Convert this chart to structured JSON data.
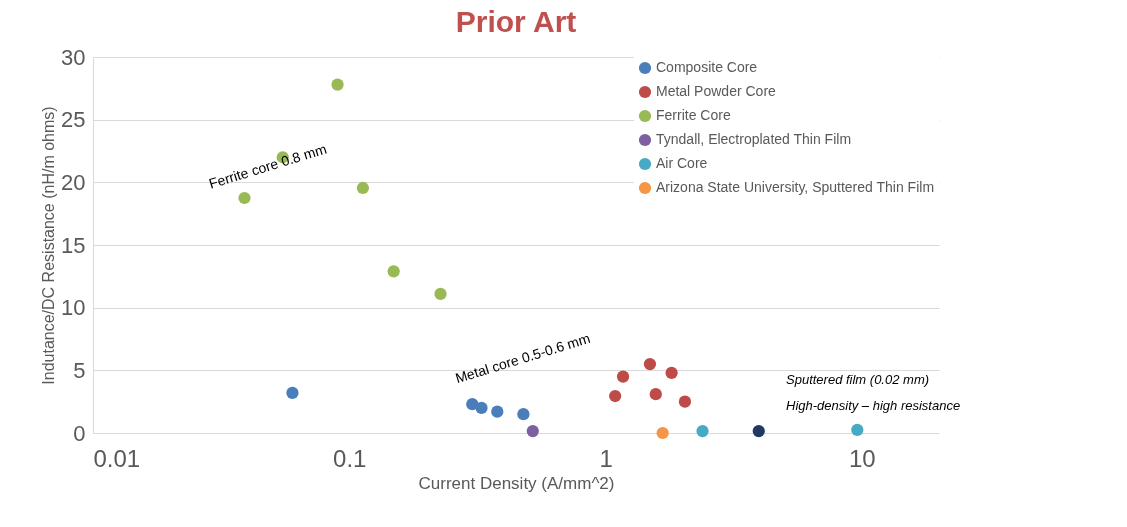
{
  "chart_data": {
    "type": "scatter",
    "title": "Prior Art",
    "xlabel": "Current Density (A/mm^2)",
    "ylabel": "Indutance/DC Resistance (nH/m ohms)",
    "log": "x",
    "xlim": [
      0.01,
      20
    ],
    "xticks": [
      0.01,
      0.1,
      1,
      10
    ],
    "ylim": [
      0,
      30
    ],
    "yticks": [
      0,
      5,
      10,
      15,
      20,
      25,
      30
    ],
    "grid": "y",
    "legend": "top right",
    "marker": "circle",
    "series": [
      {
        "name": "Composite Core",
        "color": "#4a7ebb",
        "x": [
          0.06,
          0.302,
          0.328,
          0.378,
          0.478
        ],
        "values": [
          3.2,
          2.3,
          2.0,
          1.7,
          1.5
        ]
      },
      {
        "name": "Metal Powder Core",
        "color": "#be4b48",
        "x": [
          1.09,
          1.17,
          1.49,
          1.57,
          1.81,
          2.04
        ],
        "values": [
          2.95,
          4.5,
          5.5,
          3.1,
          4.8,
          2.5
        ]
      },
      {
        "name": "Ferrite Core",
        "color": "#98b954",
        "x": [
          0.039,
          0.055,
          0.09,
          0.113,
          0.149,
          0.227
        ],
        "values": [
          18.75,
          22.0,
          27.8,
          19.55,
          12.9,
          11.1
        ]
      },
      {
        "name": "Tyndall, Electroplated Thin Film",
        "color": "#7d60a0",
        "x": [
          0.52
        ],
        "values": [
          0.15
        ]
      },
      {
        "name": "Air Core",
        "color": "#46aac5",
        "x": [
          2.39,
          9.6
        ],
        "values": [
          0.15,
          0.25
        ]
      },
      {
        "name": "Arizona State University, Sputtered Thin Film",
        "color": "#f69546",
        "x": [
          1.67
        ],
        "values": [
          0
        ]
      },
      {
        "color": "#1f3864",
        "x": [
          3.96
        ],
        "values": [
          0.15
        ]
      }
    ],
    "annotations": [
      "Ferrite core  0.8 mm",
      "Metal core 0.5-0.6 mm",
      "Sputtered film (0.02 mm)",
      "High-density – high resistance"
    ]
  }
}
